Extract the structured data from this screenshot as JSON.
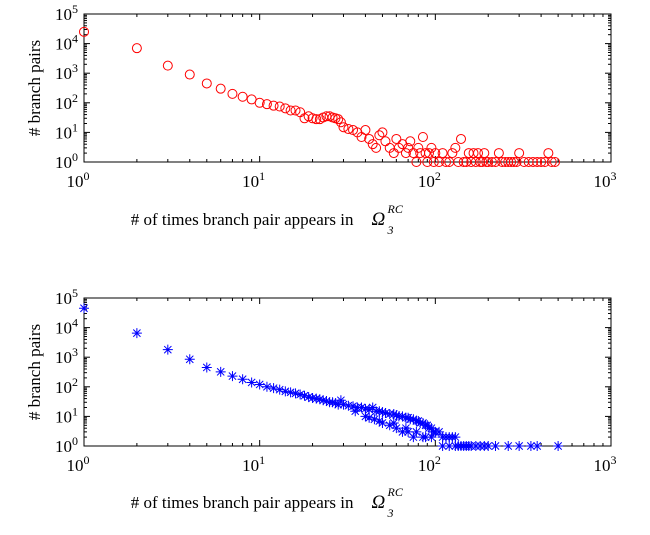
{
  "chart_data": [
    {
      "type": "scatter",
      "xscale": "log",
      "yscale": "log",
      "xlim": [
        1,
        1000
      ],
      "ylim": [
        1,
        100000
      ],
      "xticks": {
        "base": "10",
        "exps": [
          "0",
          "1",
          "2",
          "3"
        ]
      },
      "yticks": {
        "base": "10",
        "exps": [
          "0",
          "1",
          "2",
          "3",
          "4",
          "5"
        ]
      },
      "ylabel": "# branch pairs",
      "xlabel": {
        "text": "# of times branch pair appears in",
        "symbol": "Ω",
        "superscript": "RC",
        "subscript": "3"
      },
      "grid": false,
      "marker": "circle",
      "color": "#ff0000",
      "points": [
        [
          1,
          25000
        ],
        [
          2,
          7000
        ],
        [
          3,
          1800
        ],
        [
          4,
          900
        ],
        [
          5,
          450
        ],
        [
          6,
          300
        ],
        [
          7,
          200
        ],
        [
          8,
          160
        ],
        [
          9,
          130
        ],
        [
          10,
          100
        ],
        [
          11,
          90
        ],
        [
          12,
          80
        ],
        [
          13,
          75
        ],
        [
          14,
          65
        ],
        [
          15,
          55
        ],
        [
          16,
          55
        ],
        [
          17,
          48
        ],
        [
          18,
          30
        ],
        [
          19,
          35
        ],
        [
          20,
          30
        ],
        [
          21,
          28
        ],
        [
          22,
          28
        ],
        [
          23,
          32
        ],
        [
          24,
          35
        ],
        [
          25,
          35
        ],
        [
          26,
          32
        ],
        [
          27,
          30
        ],
        [
          28,
          28
        ],
        [
          29,
          22
        ],
        [
          30,
          15
        ],
        [
          32,
          13
        ],
        [
          34,
          12
        ],
        [
          36,
          10
        ],
        [
          38,
          7
        ],
        [
          40,
          12
        ],
        [
          42,
          6
        ],
        [
          44,
          4
        ],
        [
          46,
          3
        ],
        [
          48,
          8
        ],
        [
          50,
          10
        ],
        [
          52,
          5
        ],
        [
          55,
          3
        ],
        [
          58,
          2
        ],
        [
          60,
          6
        ],
        [
          62,
          3
        ],
        [
          65,
          4
        ],
        [
          68,
          2
        ],
        [
          70,
          3
        ],
        [
          72,
          5
        ],
        [
          75,
          2
        ],
        [
          78,
          1
        ],
        [
          80,
          3
        ],
        [
          82,
          2
        ],
        [
          85,
          7
        ],
        [
          88,
          2
        ],
        [
          90,
          1
        ],
        [
          92,
          2
        ],
        [
          95,
          3
        ],
        [
          98,
          1
        ],
        [
          100,
          2
        ],
        [
          105,
          1
        ],
        [
          110,
          2
        ],
        [
          115,
          1
        ],
        [
          120,
          1
        ],
        [
          125,
          2
        ],
        [
          130,
          3
        ],
        [
          135,
          1
        ],
        [
          140,
          6
        ],
        [
          145,
          1
        ],
        [
          150,
          1
        ],
        [
          155,
          2
        ],
        [
          160,
          1
        ],
        [
          165,
          2
        ],
        [
          170,
          1
        ],
        [
          175,
          2
        ],
        [
          180,
          1
        ],
        [
          185,
          1
        ],
        [
          190,
          2
        ],
        [
          195,
          1
        ],
        [
          200,
          1
        ],
        [
          210,
          1
        ],
        [
          220,
          1
        ],
        [
          230,
          2
        ],
        [
          240,
          1
        ],
        [
          250,
          1
        ],
        [
          260,
          1
        ],
        [
          270,
          1
        ],
        [
          280,
          1
        ],
        [
          290,
          1
        ],
        [
          300,
          2
        ],
        [
          320,
          1
        ],
        [
          340,
          1
        ],
        [
          360,
          1
        ],
        [
          380,
          1
        ],
        [
          400,
          1
        ],
        [
          420,
          1
        ],
        [
          440,
          2
        ],
        [
          460,
          1
        ],
        [
          480,
          1
        ]
      ]
    },
    {
      "type": "scatter",
      "xscale": "log",
      "yscale": "log",
      "xlim": [
        1,
        1000
      ],
      "ylim": [
        1,
        100000
      ],
      "xticks": {
        "base": "10",
        "exps": [
          "0",
          "1",
          "2",
          "3"
        ]
      },
      "yticks": {
        "base": "10",
        "exps": [
          "0",
          "1",
          "2",
          "3",
          "4",
          "5"
        ]
      },
      "ylabel": "# branch pairs",
      "xlabel": {
        "text": "# of times branch pair appears in",
        "symbol": "Ω",
        "superscript": "RC",
        "subscript": "3"
      },
      "grid": false,
      "marker": "asterisk",
      "color": "#0000ff",
      "points": [
        [
          1,
          45000
        ],
        [
          2,
          6500
        ],
        [
          3,
          1800
        ],
        [
          4,
          850
        ],
        [
          5,
          450
        ],
        [
          6,
          320
        ],
        [
          7,
          230
        ],
        [
          8,
          180
        ],
        [
          9,
          140
        ],
        [
          10,
          120
        ],
        [
          11,
          100
        ],
        [
          12,
          90
        ],
        [
          13,
          80
        ],
        [
          14,
          70
        ],
        [
          15,
          65
        ],
        [
          16,
          60
        ],
        [
          17,
          55
        ],
        [
          18,
          50
        ],
        [
          19,
          45
        ],
        [
          20,
          42
        ],
        [
          21,
          40
        ],
        [
          22,
          38
        ],
        [
          23,
          35
        ],
        [
          24,
          33
        ],
        [
          25,
          30
        ],
        [
          26,
          30
        ],
        [
          27,
          28
        ],
        [
          28,
          25
        ],
        [
          29,
          35
        ],
        [
          30,
          25
        ],
        [
          32,
          23
        ],
        [
          34,
          22
        ],
        [
          36,
          20
        ],
        [
          38,
          20
        ],
        [
          40,
          18
        ],
        [
          42,
          17
        ],
        [
          44,
          20
        ],
        [
          46,
          15
        ],
        [
          48,
          15
        ],
        [
          50,
          14
        ],
        [
          52,
          13
        ],
        [
          55,
          12
        ],
        [
          58,
          12
        ],
        [
          60,
          11
        ],
        [
          62,
          10
        ],
        [
          65,
          10
        ],
        [
          68,
          9
        ],
        [
          70,
          9
        ],
        [
          72,
          8
        ],
        [
          75,
          8
        ],
        [
          78,
          7
        ],
        [
          80,
          7
        ],
        [
          82,
          6
        ],
        [
          85,
          6
        ],
        [
          88,
          5
        ],
        [
          90,
          5
        ],
        [
          92,
          4
        ],
        [
          95,
          4
        ],
        [
          98,
          3
        ],
        [
          100,
          3
        ],
        [
          105,
          3
        ],
        [
          110,
          2
        ],
        [
          115,
          2
        ],
        [
          120,
          2
        ],
        [
          125,
          2
        ],
        [
          130,
          2
        ],
        [
          135,
          1
        ],
        [
          140,
          1
        ],
        [
          145,
          1
        ],
        [
          150,
          1
        ],
        [
          155,
          1
        ],
        [
          160,
          1
        ],
        [
          170,
          1
        ],
        [
          180,
          1
        ],
        [
          190,
          1
        ],
        [
          200,
          1
        ],
        [
          220,
          1
        ],
        [
          260,
          1
        ],
        [
          300,
          1
        ],
        [
          350,
          1
        ],
        [
          380,
          1
        ],
        [
          500,
          1
        ],
        [
          40,
          10
        ],
        [
          50,
          6
        ],
        [
          60,
          4
        ],
        [
          70,
          3
        ],
        [
          45,
          8
        ],
        [
          55,
          5
        ],
        [
          65,
          3
        ],
        [
          75,
          2
        ],
        [
          85,
          2
        ],
        [
          95,
          2
        ],
        [
          35,
          15
        ],
        [
          42,
          9
        ],
        [
          48,
          7
        ],
        [
          58,
          6
        ],
        [
          68,
          4
        ],
        [
          78,
          3
        ],
        [
          88,
          2
        ],
        [
          110,
          1
        ],
        [
          120,
          1
        ],
        [
          130,
          1
        ]
      ]
    }
  ]
}
